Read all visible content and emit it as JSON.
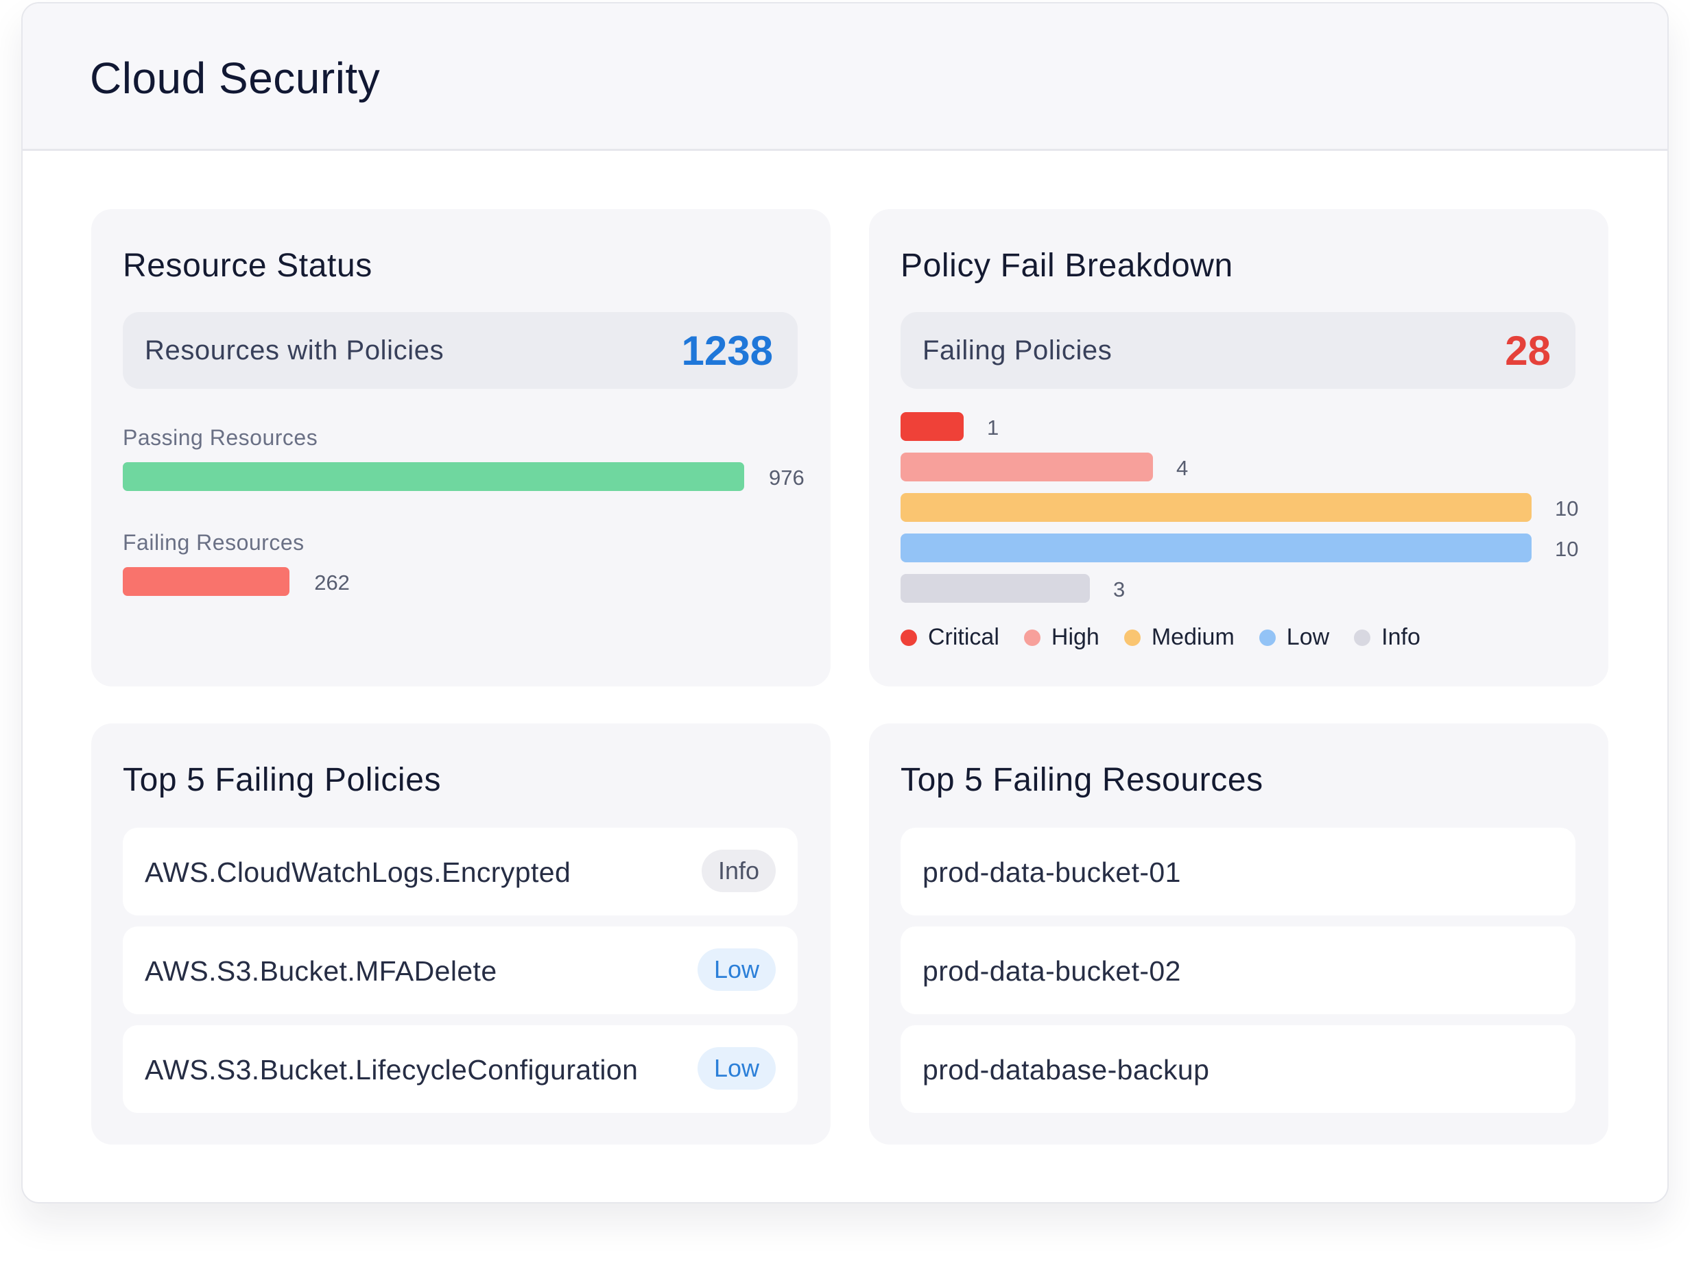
{
  "header": {
    "title": "Cloud Security"
  },
  "resource_status": {
    "title": "Resource Status",
    "summary_label": "Resources with Policies",
    "summary_value": "1238",
    "summary_color": "#1f77d9",
    "passing": {
      "label": "Passing Resources",
      "value": 976,
      "color": "#6fd79f"
    },
    "failing": {
      "label": "Failing Resources",
      "value": 262,
      "color": "#f9736c"
    }
  },
  "policy_breakdown": {
    "title": "Policy Fail Breakdown",
    "summary_label": "Failing Policies",
    "summary_value": "28",
    "summary_color": "#e5413a",
    "max": 10,
    "bars": [
      {
        "severity": "Critical",
        "value": 1,
        "color": "#ef4138"
      },
      {
        "severity": "High",
        "value": 4,
        "color": "#f7a09b"
      },
      {
        "severity": "Medium",
        "value": 10,
        "color": "#fac571"
      },
      {
        "severity": "Low",
        "value": 10,
        "color": "#93c3f6"
      },
      {
        "severity": "Info",
        "value": 3,
        "color": "#d8d8e1"
      }
    ],
    "legend": [
      "Critical",
      "High",
      "Medium",
      "Low",
      "Info"
    ]
  },
  "top_policies": {
    "title": "Top 5 Failing Policies",
    "items": [
      {
        "name": "AWS.CloudWatchLogs.Encrypted",
        "severity": "Info"
      },
      {
        "name": "AWS.S3.Bucket.MFADelete",
        "severity": "Low"
      },
      {
        "name": "AWS.S3.Bucket.LifecycleConfiguration",
        "severity": "Low"
      }
    ]
  },
  "top_resources": {
    "title": "Top 5 Failing Resources",
    "items": [
      {
        "name": "prod-data-bucket-01"
      },
      {
        "name": "prod-data-bucket-02"
      },
      {
        "name": "prod-database-backup"
      }
    ]
  }
}
